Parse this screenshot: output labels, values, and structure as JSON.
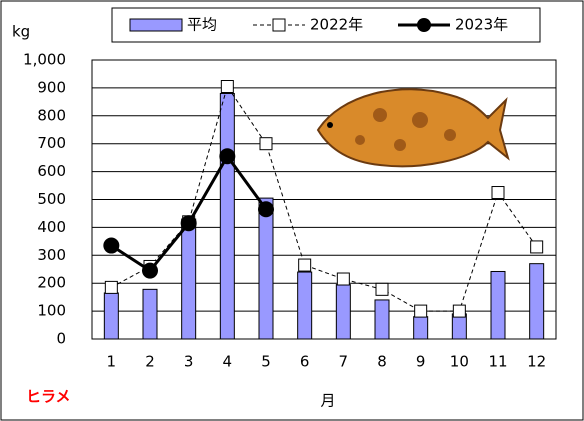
{
  "chart_data": {
    "type": "bar",
    "y_label": "kg",
    "x_label": "月",
    "annotation": "ヒラメ",
    "categories": [
      "1",
      "2",
      "3",
      "4",
      "5",
      "6",
      "7",
      "8",
      "9",
      "10",
      "11",
      "12"
    ],
    "series": [
      {
        "name": "平均",
        "type": "bar",
        "color": "#9999ff",
        "values": [
          165,
          178,
          430,
          880,
          505,
          240,
          195,
          140,
          80,
          90,
          242,
          270
        ]
      },
      {
        "name": "2022年",
        "type": "line",
        "color": "#000000",
        "dashed": true,
        "marker": "square",
        "values": [
          185,
          260,
          420,
          905,
          700,
          265,
          215,
          178,
          100,
          100,
          525,
          330
        ]
      },
      {
        "name": "2023年",
        "type": "line",
        "color": "#000000",
        "dashed": false,
        "marker": "circle",
        "values": [
          335,
          245,
          415,
          655,
          465,
          null,
          null,
          null,
          null,
          null,
          null,
          null
        ]
      }
    ],
    "ylim": [
      0,
      1000
    ],
    "yticks": [
      0,
      100,
      200,
      300,
      400,
      500,
      600,
      700,
      800,
      900,
      {
        "value": 1000,
        "label": "1,000"
      }
    ],
    "grid": true
  }
}
